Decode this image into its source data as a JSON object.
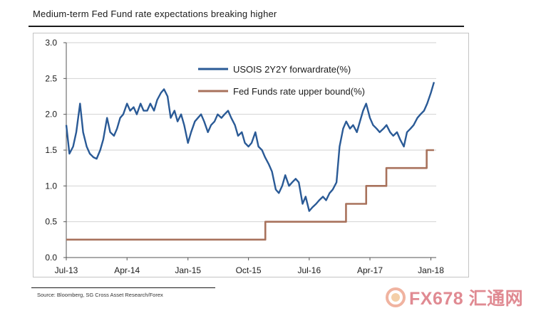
{
  "title": "Medium-term Fed Fund rate expectations breaking higher",
  "source": "Source: Bloomberg, SG Cross Asset Research/Forex",
  "watermark": {
    "text": "FX678 汇通网",
    "color": "#e08a92"
  },
  "chart_data": {
    "type": "line",
    "ylim": [
      0.0,
      3.0
    ],
    "yticks": [
      "3.0",
      "2.5",
      "2.0",
      "1.5",
      "1.0",
      "0.5",
      "0.0"
    ],
    "xticks": [
      "Jul-13",
      "Apr-14",
      "Jan-15",
      "Oct-15",
      "Jul-16",
      "Apr-17",
      "Jan-18"
    ],
    "grid": "horizontal",
    "legend_position": "top-right",
    "series": [
      {
        "name": "USOIS 2Y2Y forwardrate(%)",
        "color": "#2a5a96",
        "x": [
          "2013-07-01",
          "2013-07-15",
          "2013-08-01",
          "2013-08-15",
          "2013-09-01",
          "2013-09-15",
          "2013-10-01",
          "2013-10-15",
          "2013-11-01",
          "2013-11-15",
          "2013-12-01",
          "2013-12-15",
          "2014-01-01",
          "2014-01-15",
          "2014-02-01",
          "2014-02-15",
          "2014-03-01",
          "2014-03-15",
          "2014-04-01",
          "2014-04-15",
          "2014-05-01",
          "2014-05-15",
          "2014-06-01",
          "2014-06-15",
          "2014-07-01",
          "2014-07-15",
          "2014-08-01",
          "2014-08-15",
          "2014-09-01",
          "2014-09-15",
          "2014-10-01",
          "2014-10-15",
          "2014-11-01",
          "2014-11-15",
          "2014-12-01",
          "2014-12-15",
          "2015-01-01",
          "2015-01-15",
          "2015-02-01",
          "2015-02-15",
          "2015-03-01",
          "2015-03-15",
          "2015-04-01",
          "2015-04-15",
          "2015-05-01",
          "2015-05-15",
          "2015-06-01",
          "2015-06-15",
          "2015-07-01",
          "2015-07-15",
          "2015-08-01",
          "2015-08-15",
          "2015-09-01",
          "2015-09-15",
          "2015-10-01",
          "2015-10-15",
          "2015-11-01",
          "2015-11-15",
          "2015-12-01",
          "2015-12-15",
          "2016-01-01",
          "2016-01-15",
          "2016-02-01",
          "2016-02-15",
          "2016-03-01",
          "2016-03-15",
          "2016-04-01",
          "2016-04-15",
          "2016-05-01",
          "2016-05-15",
          "2016-06-01",
          "2016-06-15",
          "2016-07-01",
          "2016-07-15",
          "2016-08-01",
          "2016-08-15",
          "2016-09-01",
          "2016-09-15",
          "2016-10-01",
          "2016-10-15",
          "2016-11-01",
          "2016-11-15",
          "2016-12-01",
          "2016-12-15",
          "2017-01-01",
          "2017-01-15",
          "2017-02-01",
          "2017-02-15",
          "2017-03-01",
          "2017-03-15",
          "2017-04-01",
          "2017-04-15",
          "2017-05-01",
          "2017-05-15",
          "2017-06-01",
          "2017-06-15",
          "2017-07-01",
          "2017-07-15",
          "2017-08-01",
          "2017-08-15",
          "2017-09-01",
          "2017-09-15",
          "2017-10-01",
          "2017-10-15",
          "2017-11-01",
          "2017-11-15",
          "2017-12-01",
          "2017-12-15",
          "2018-01-01",
          "2018-01-15"
        ],
        "values": [
          1.85,
          1.45,
          1.55,
          1.75,
          2.15,
          1.75,
          1.55,
          1.45,
          1.4,
          1.38,
          1.5,
          1.65,
          1.95,
          1.75,
          1.7,
          1.8,
          1.95,
          2.0,
          2.15,
          2.05,
          2.1,
          2.0,
          2.15,
          2.05,
          2.05,
          2.15,
          2.05,
          2.2,
          2.3,
          2.35,
          2.25,
          1.95,
          2.05,
          1.9,
          2.0,
          1.85,
          1.6,
          1.75,
          1.9,
          1.95,
          2.0,
          1.9,
          1.75,
          1.85,
          1.9,
          2.0,
          1.95,
          2.0,
          2.05,
          1.95,
          1.85,
          1.7,
          1.75,
          1.6,
          1.55,
          1.6,
          1.75,
          1.55,
          1.5,
          1.4,
          1.3,
          1.2,
          0.95,
          0.9,
          1.0,
          1.15,
          1.0,
          1.05,
          1.1,
          1.05,
          0.75,
          0.85,
          0.65,
          0.7,
          0.75,
          0.8,
          0.85,
          0.8,
          0.9,
          0.95,
          1.05,
          1.55,
          1.8,
          1.9,
          1.8,
          1.85,
          1.75,
          1.9,
          2.05,
          2.15,
          1.95,
          1.85,
          1.8,
          1.75,
          1.8,
          1.85,
          1.75,
          1.7,
          1.75,
          1.65,
          1.55,
          1.75,
          1.8,
          1.85,
          1.95,
          2.0,
          2.05,
          2.15,
          2.3,
          2.45
        ]
      },
      {
        "name": "Fed Funds rate upper bound(%)",
        "color": "#a8725c",
        "x": [
          "2013-07-01",
          "2015-12-16",
          "2016-12-14",
          "2017-03-15",
          "2017-06-14",
          "2017-12-13",
          "2018-01-15"
        ],
        "values": [
          0.25,
          0.5,
          0.75,
          1.0,
          1.25,
          1.5,
          1.5
        ]
      }
    ]
  }
}
